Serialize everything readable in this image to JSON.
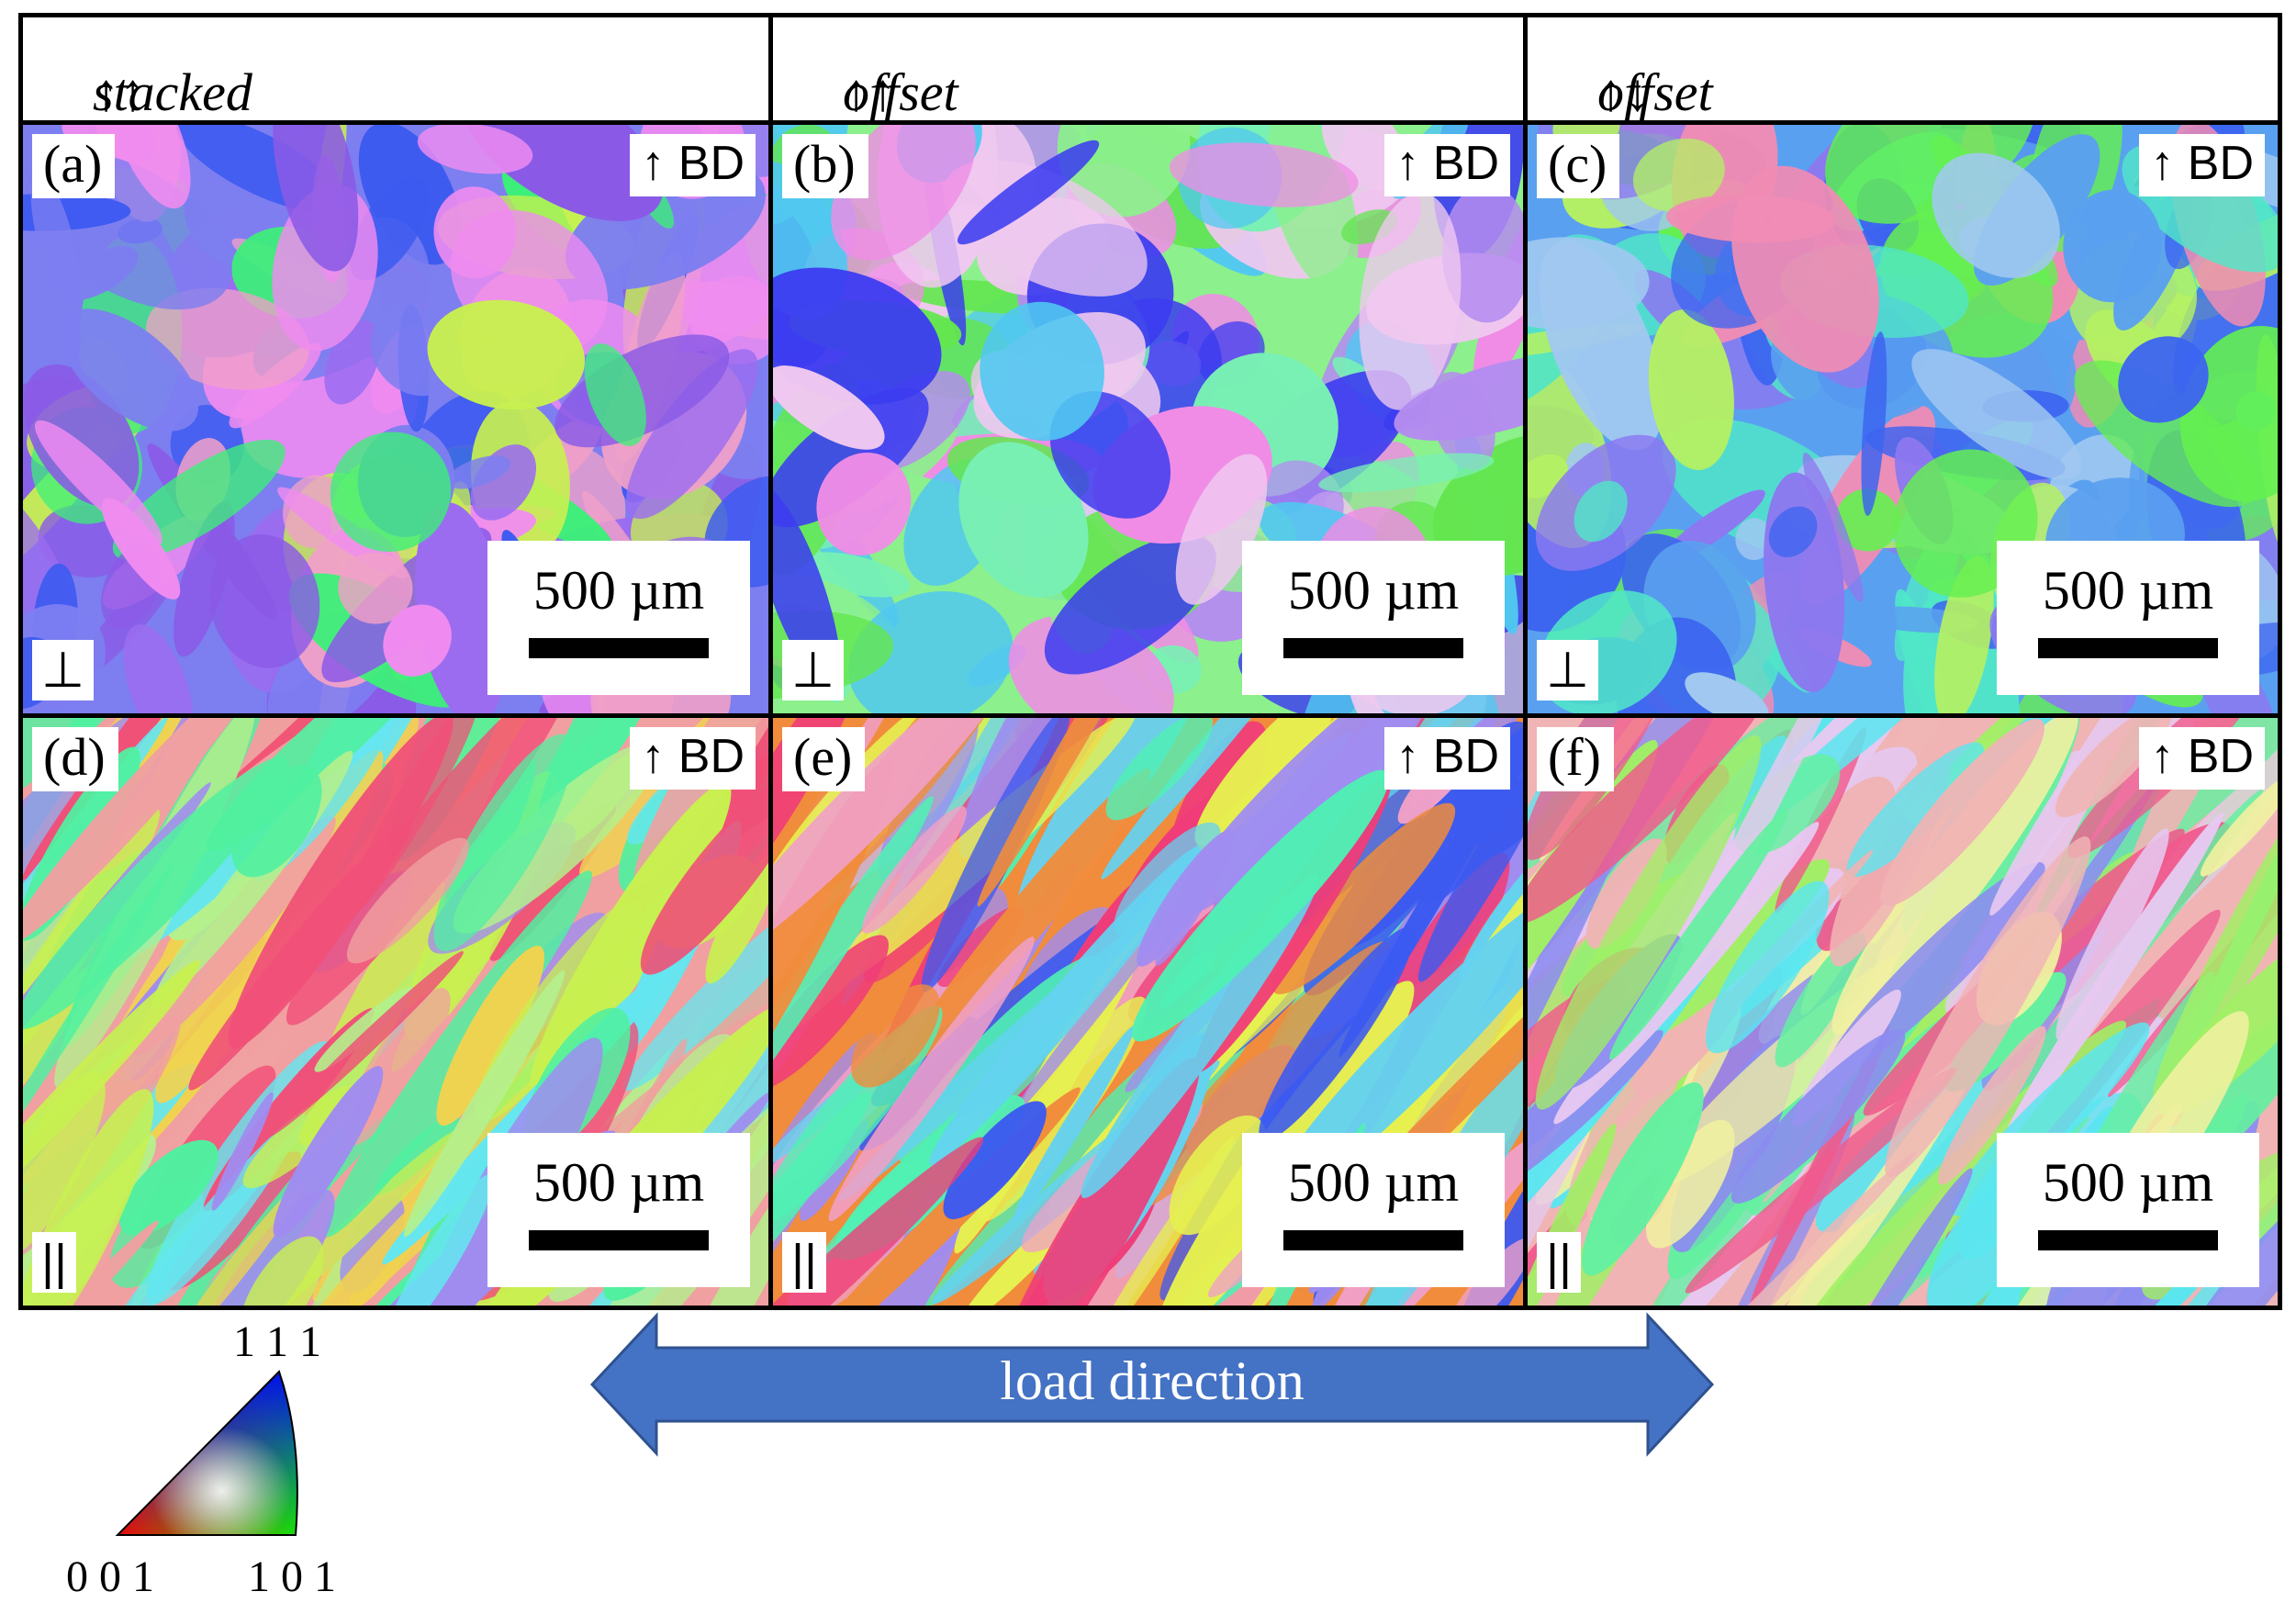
{
  "columns": [
    {
      "label": "stacked",
      "arrows": "↑↑"
    },
    {
      "label": "offset",
      "arrows": "↑↑"
    },
    {
      "label": "offset",
      "arrows": "↑↓"
    }
  ],
  "panels": [
    {
      "label": "(a)",
      "bd": "↑ BD",
      "orientation": "⊥",
      "scale": "500 µm",
      "palette": [
        "#7d7ef0",
        "#9b6cf0",
        "#f08cf0",
        "#3cf078",
        "#3c5af0",
        "#f0a0c8",
        "#c8f050",
        "#8a5ae6"
      ]
    },
    {
      "label": "(b)",
      "bd": "↑ BD",
      "orientation": "⊥",
      "scale": "500 µm",
      "palette": [
        "#8cf08c",
        "#b48cf0",
        "#50c8f0",
        "#f08ce6",
        "#3c3cf0",
        "#78f0b4",
        "#f0c8f0",
        "#64e650"
      ]
    },
    {
      "label": "(c)",
      "bd": "↑ BD",
      "orientation": "⊥",
      "scale": "500 µm",
      "palette": [
        "#5aa0f0",
        "#8c78f0",
        "#50e6c8",
        "#3c64f0",
        "#b4f064",
        "#f08cb4",
        "#64f050",
        "#a0c8f0"
      ]
    },
    {
      "label": "(d)",
      "bd": "↑ BD",
      "orientation": "||",
      "scale": "500 µm",
      "palette": [
        "#f0a0a0",
        "#c8f050",
        "#50f0a0",
        "#f05078",
        "#64e6f0",
        "#b4f08c",
        "#f0d250",
        "#a08cf0"
      ]
    },
    {
      "label": "(e)",
      "bd": "↑ BD",
      "orientation": "||",
      "scale": "500 µm",
      "palette": [
        "#f08c3c",
        "#50f0b4",
        "#a08cf0",
        "#f03c78",
        "#3c5af0",
        "#e6f050",
        "#64d2f0",
        "#f0a0c8"
      ]
    },
    {
      "label": "(f)",
      "bd": "↑ BD",
      "orientation": "||",
      "scale": "500 µm",
      "palette": [
        "#f0b4b4",
        "#5ae6f0",
        "#a0f064",
        "#f05a8c",
        "#8c8cf0",
        "#e6c8f0",
        "#64f0a0",
        "#f0f0a0"
      ]
    }
  ],
  "load_direction": {
    "label": "load direction",
    "color": "#4472c4",
    "stroke": "#2f528f"
  },
  "ipf_legend": {
    "top": "1 1 1",
    "left": "0 0 1",
    "right": "1 0 1"
  }
}
